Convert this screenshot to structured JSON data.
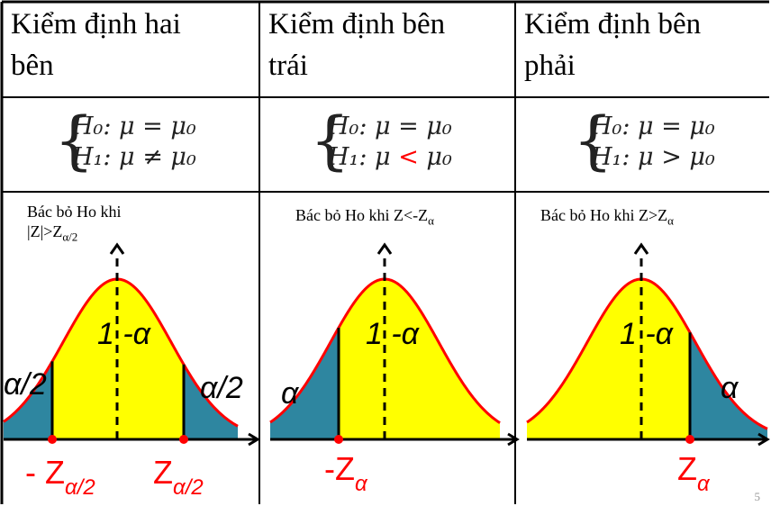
{
  "columns": [
    {
      "header": [
        "Kiểm định hai",
        "bên"
      ],
      "hypothesis": {
        "h0": "H₀: μ = μ₀",
        "h1_prefix": "H₁: μ ",
        "h1_op": "≠",
        "h1_suffix": " μ₀"
      },
      "rule": {
        "line1": "Bác bỏ Ho khi",
        "line2_text": "|Z|>Z",
        "line2_sub": "α/2"
      },
      "center_label": "1 -α",
      "left_tail_label": "α/2",
      "right_tail_label": "α/2",
      "crit_left": {
        "text": "- Z",
        "sub": "α/2"
      },
      "crit_right": {
        "text": "Z",
        "sub": "α/2"
      }
    },
    {
      "header": [
        "Kiểm định bên",
        "trái"
      ],
      "hypothesis": {
        "h0": "H₀: μ = μ₀",
        "h1_prefix": "H₁: μ ",
        "h1_op": "<",
        "h1_suffix": " μ₀"
      },
      "rule": {
        "text": "Bác bỏ Ho khi Z<-Z",
        "sub": "α"
      },
      "center_label": "1 -α",
      "tail_label": "α",
      "crit": {
        "text": "-Z",
        "sub": "α"
      }
    },
    {
      "header": [
        "Kiểm định bên",
        "phải"
      ],
      "hypothesis": {
        "h0": "H₀: μ = μ₀",
        "h1_prefix": "H₁: μ ",
        "h1_op": ">",
        "h1_suffix": " μ₀"
      },
      "rule": {
        "text": "Bác bỏ Ho khi Z>Z",
        "sub": "α"
      },
      "center_label": "1 -α",
      "tail_label": "α",
      "crit": {
        "text": "Z",
        "sub": "α"
      }
    }
  ],
  "page_number": "5",
  "colors": {
    "curve": "#ff0000",
    "fill": "#ffff00",
    "tail": "#2e86a0",
    "crit_point": "#ff0000",
    "axis": "#000000"
  }
}
